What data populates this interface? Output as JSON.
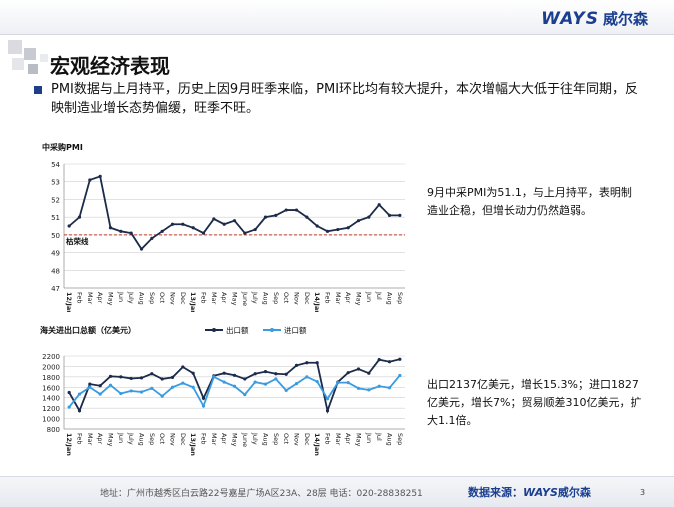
{
  "header": {
    "logo_brand": "WAYS",
    "logo_cn": "威尔森"
  },
  "title": "宏观经济表现",
  "summary": "PMI数据与上月持平，历史上因9月旺季来临，PMI环比均有较大提升，本次增幅大大低于往年同期，反映制造业增长态势偏缓，旺季不旺。",
  "notes": {
    "pmi": "9月中采PMI为51.1，与上月持平，表明制造业企稳，但增长动力仍然趋弱。",
    "trade": "出口2137亿美元，增长15.3%；进口1827亿美元，增长7%；贸易顺差310亿美元，扩大1.1倍。"
  },
  "footer": {
    "address": "地址：广州市越秀区白云路22号嘉星广场A区23A、28层   电话：020-28838251",
    "source_label": "数据来源：",
    "source_brand": "WAYS",
    "source_cn": "威尔森",
    "page": "3"
  },
  "colors": {
    "brand": "#1a3f8f",
    "export": "#1c2b4a",
    "import": "#3a9be0",
    "threshold": "#c0392b"
  },
  "chart_data": [
    {
      "type": "line",
      "title": "中采购PMI",
      "ylim": [
        47,
        54
      ],
      "yticks": [
        47,
        48,
        49,
        50,
        51,
        52,
        53,
        54
      ],
      "x": [
        "12/Jan",
        "Feb",
        "Mar",
        "Apr",
        "May",
        "Jun",
        "July",
        "Aug",
        "Sep",
        "Oct",
        "Nov",
        "Dec",
        "13/Jan",
        "Feb",
        "Mar",
        "Apr",
        "May",
        "June",
        "July",
        "Aug",
        "Sep",
        "Oct",
        "Nov",
        "Dec",
        "14/Jan",
        "Feb",
        "Mar",
        "Apr",
        "May",
        "Jun",
        "Jul",
        "Aug",
        "Sep"
      ],
      "series": [
        {
          "values": [
            50.5,
            51.0,
            53.1,
            53.3,
            50.4,
            50.2,
            50.1,
            49.2,
            49.8,
            50.2,
            50.6,
            50.6,
            50.4,
            50.1,
            50.9,
            50.6,
            50.8,
            50.1,
            50.3,
            51.0,
            51.1,
            51.4,
            51.4,
            51.0,
            50.5,
            50.2,
            50.3,
            50.4,
            50.8,
            51.0,
            51.7,
            51.1,
            51.1
          ]
        }
      ],
      "reference": {
        "value": 50,
        "label": "枯荣线"
      }
    },
    {
      "type": "line",
      "title": "海关进出口总额（亿美元）",
      "ylim": [
        800,
        2200
      ],
      "yticks": [
        800,
        1000,
        1200,
        1400,
        1600,
        1800,
        2000,
        2200
      ],
      "x": [
        "12/Jan",
        "Feb",
        "Mar",
        "Apr",
        "May",
        "Jun",
        "July",
        "Aug",
        "Sep",
        "Oct",
        "Nov",
        "Dec",
        "13/Jan",
        "Feb",
        "Mar",
        "Apr",
        "May",
        "June",
        "July",
        "Aug",
        "Sep",
        "Oct",
        "Nov",
        "Dec",
        "14/Jan",
        "Feb",
        "Mar",
        "Apr",
        "May",
        "Jun",
        "Jul",
        "Aug",
        "Sep"
      ],
      "series": [
        {
          "name": "出口额",
          "values": [
            1500,
            1150,
            1660,
            1630,
            1810,
            1800,
            1770,
            1780,
            1860,
            1760,
            1790,
            1990,
            1870,
            1390,
            1820,
            1870,
            1830,
            1760,
            1860,
            1900,
            1860,
            1850,
            2020,
            2070,
            2070,
            1150,
            1700,
            1880,
            1950,
            1870,
            2130,
            2090,
            2137
          ]
        },
        {
          "name": "进口额",
          "values": [
            1220,
            1470,
            1600,
            1470,
            1640,
            1480,
            1530,
            1510,
            1580,
            1430,
            1600,
            1680,
            1600,
            1240,
            1800,
            1700,
            1620,
            1460,
            1700,
            1660,
            1760,
            1540,
            1670,
            1800,
            1710,
            1380,
            1690,
            1690,
            1580,
            1550,
            1620,
            1590,
            1827
          ]
        }
      ]
    }
  ]
}
